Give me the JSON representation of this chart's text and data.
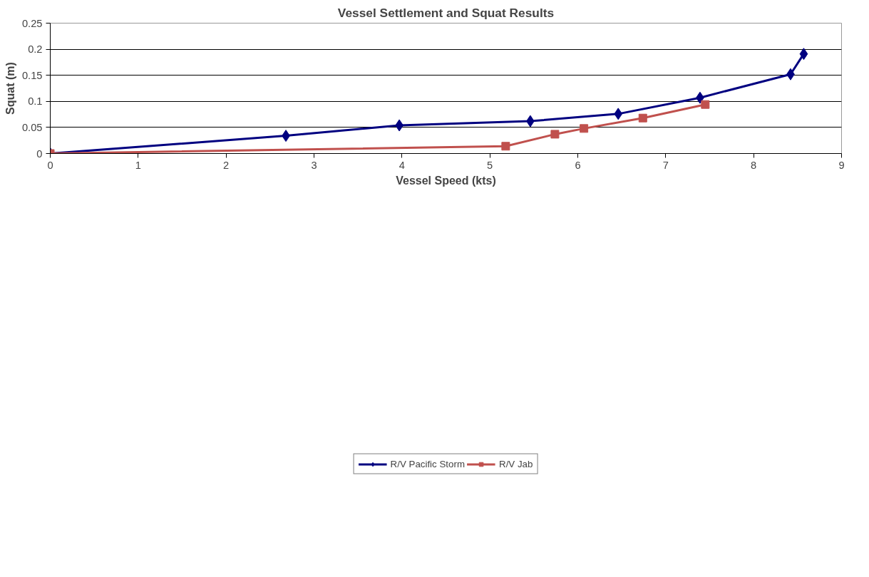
{
  "chart_data": {
    "type": "line",
    "title": "Vessel Settlement and Squat Results",
    "xlabel": "Vessel Speed (kts)",
    "ylabel": "Squat (m)",
    "xlim": [
      0,
      9
    ],
    "xticks": [
      0,
      1,
      2,
      3,
      4,
      5,
      6,
      7,
      8,
      9
    ],
    "ylim": [
      0,
      0.25
    ],
    "yticks": [
      0,
      0.05,
      0.1,
      0.15,
      0.2,
      0.25
    ],
    "grid": "y",
    "legend": "bottom",
    "line_style": "solid",
    "series": [
      {
        "name": "R/V Pacific Storm",
        "color": "#000080",
        "marker": "diamond",
        "x": [
          0,
          2.68,
          3.97,
          5.46,
          6.46,
          7.39,
          8.42,
          8.57
        ],
        "values": [
          0,
          0.034,
          0.054,
          0.062,
          0.076,
          0.107,
          0.152,
          0.191
        ]
      },
      {
        "name": "R/V Jab",
        "color": "#c0504d",
        "marker": "square",
        "x": [
          0,
          5.18,
          5.74,
          6.07,
          6.74,
          7.45
        ],
        "values": [
          0,
          0.014,
          0.037,
          0.048,
          0.068,
          0.094
        ]
      }
    ]
  }
}
